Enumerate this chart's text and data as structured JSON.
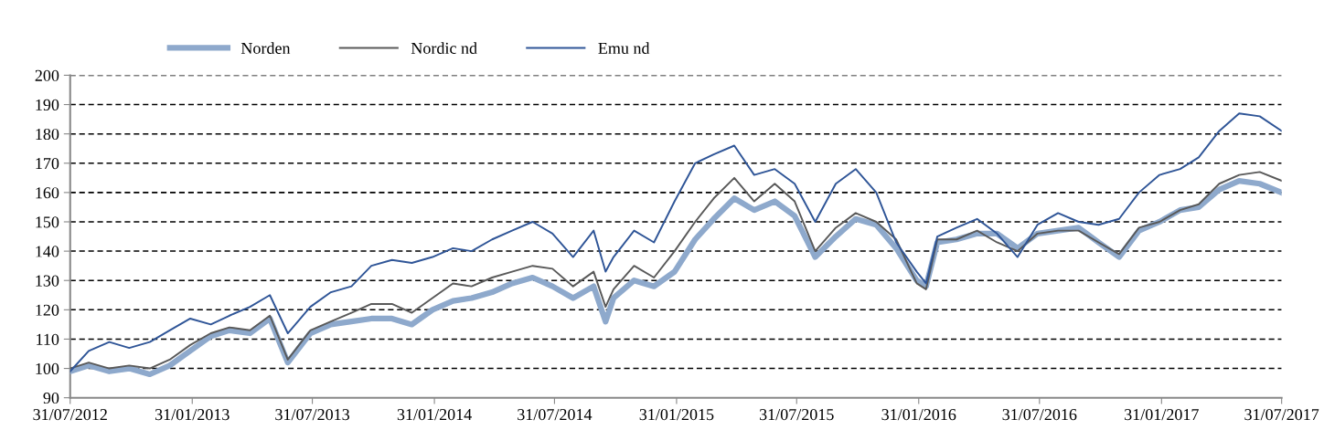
{
  "chart_data": {
    "type": "line",
    "x": [
      "2012-07-31",
      "2012-08-28",
      "2012-09-28",
      "2012-10-28",
      "2012-11-28",
      "2012-12-28",
      "2013-01-28",
      "2013-02-28",
      "2013-03-28",
      "2013-04-28",
      "2013-05-28",
      "2013-06-24",
      "2013-07-28",
      "2013-08-28",
      "2013-09-28",
      "2013-10-28",
      "2013-11-28",
      "2013-12-28",
      "2014-01-28",
      "2014-02-28",
      "2014-03-28",
      "2014-04-28",
      "2014-05-28",
      "2014-06-28",
      "2014-07-28",
      "2014-08-28",
      "2014-09-28",
      "2014-10-16",
      "2014-10-28",
      "2014-11-28",
      "2014-12-28",
      "2015-01-28",
      "2015-02-28",
      "2015-03-28",
      "2015-04-28",
      "2015-05-28",
      "2015-06-28",
      "2015-07-28",
      "2015-08-28",
      "2015-09-28",
      "2015-10-28",
      "2015-11-28",
      "2015-12-28",
      "2016-01-28",
      "2016-02-11",
      "2016-02-28",
      "2016-03-28",
      "2016-04-28",
      "2016-05-28",
      "2016-06-28",
      "2016-07-28",
      "2016-08-28",
      "2016-09-28",
      "2016-10-28",
      "2016-11-28",
      "2016-12-28",
      "2017-01-28",
      "2017-02-28",
      "2017-03-28",
      "2017-04-28",
      "2017-05-28",
      "2017-06-28",
      "2017-07-31"
    ],
    "series": [
      {
        "name": "Norden",
        "color": "#8ea9cc",
        "values": [
          99,
          101,
          99,
          100,
          98,
          101,
          106,
          111,
          113,
          112,
          117,
          102,
          112,
          115,
          116,
          117,
          117,
          115,
          120,
          123,
          124,
          126,
          129,
          131,
          128,
          124,
          128,
          116,
          124,
          130,
          128,
          133,
          144,
          151,
          158,
          154,
          157,
          152,
          138,
          145,
          151,
          149,
          141,
          130,
          128,
          143,
          144,
          146,
          146,
          141,
          146,
          147,
          148,
          143,
          138,
          147,
          150,
          154,
          155,
          161,
          164,
          163,
          160
        ]
      },
      {
        "name": "Nordic nd",
        "color": "#595959",
        "values": [
          100,
          102,
          100,
          101,
          100,
          103,
          108,
          112,
          114,
          113,
          118,
          103,
          113,
          116,
          119,
          122,
          122,
          119,
          124,
          129,
          128,
          131,
          133,
          135,
          134,
          128,
          133,
          121,
          127,
          135,
          131,
          140,
          150,
          158,
          165,
          157,
          163,
          157,
          140,
          148,
          153,
          150,
          144,
          129,
          127,
          144,
          144,
          147,
          143,
          140,
          146,
          147,
          147,
          143,
          139,
          148,
          150,
          154,
          156,
          163,
          166,
          167,
          164
        ]
      },
      {
        "name": "Emu nd",
        "color": "#2f5597",
        "values": [
          99,
          106,
          109,
          107,
          109,
          113,
          117,
          115,
          118,
          121,
          125,
          112,
          121,
          126,
          128,
          135,
          137,
          136,
          138,
          141,
          140,
          144,
          147,
          150,
          146,
          138,
          147,
          133,
          138,
          147,
          143,
          157,
          170,
          173,
          176,
          166,
          168,
          163,
          150,
          163,
          168,
          160,
          143,
          133,
          129,
          145,
          148,
          151,
          146,
          138,
          149,
          153,
          150,
          149,
          151,
          160,
          166,
          168,
          172,
          181,
          187,
          186,
          181
        ]
      }
    ],
    "ylim": [
      90,
      200
    ],
    "yticks": [
      90,
      100,
      110,
      120,
      130,
      140,
      150,
      160,
      170,
      180,
      190,
      200
    ],
    "xlim": [
      "2012-07-31",
      "2017-07-31"
    ],
    "xticks": [
      {
        "value": "2012-07-31",
        "label": "31/07/2012"
      },
      {
        "value": "2013-01-31",
        "label": "31/01/2013"
      },
      {
        "value": "2013-07-31",
        "label": "31/07/2013"
      },
      {
        "value": "2014-01-31",
        "label": "31/01/2014"
      },
      {
        "value": "2014-07-31",
        "label": "31/07/2014"
      },
      {
        "value": "2015-01-31",
        "label": "31/01/2015"
      },
      {
        "value": "2015-07-31",
        "label": "31/07/2015"
      },
      {
        "value": "2016-01-31",
        "label": "31/01/2016"
      },
      {
        "value": "2016-07-31",
        "label": "31/07/2016"
      },
      {
        "value": "2017-01-31",
        "label": "31/01/2017"
      },
      {
        "value": "2017-07-31",
        "label": "31/07/2017"
      }
    ],
    "grid": "y",
    "legend": "top left",
    "line_style": "solid",
    "marker": "none"
  }
}
